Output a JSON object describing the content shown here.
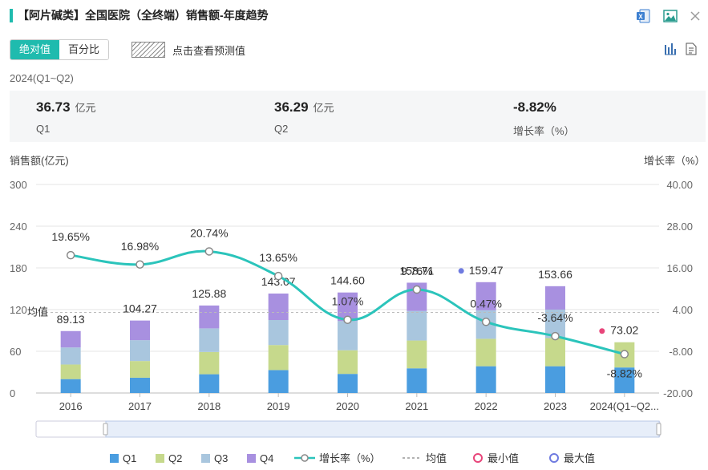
{
  "header": {
    "title": "【阿片碱类】全国医院（全终端）销售额-年度趋势",
    "export_excel_icon": "excel-export-icon",
    "export_image_icon": "image-export-icon",
    "close_icon": "close-icon"
  },
  "toolbar": {
    "absolute_label": "绝对值",
    "percent_label": "百分比",
    "forecast_label": "点击查看预测值",
    "chart_view_icon": "bar-chart-icon",
    "table_view_icon": "document-icon"
  },
  "summary": {
    "period": "2024(Q1~Q2)",
    "items": [
      {
        "value": "36.73",
        "unit": "亿元",
        "label": "Q1"
      },
      {
        "value": "36.29",
        "unit": "亿元",
        "label": "Q2"
      },
      {
        "value": "-8.82%",
        "unit": "",
        "label": "增长率（%）"
      }
    ]
  },
  "chart_data": {
    "type": "bar",
    "stacked": true,
    "left_axis_title": "销售额(亿元)",
    "right_axis_title": "增长率（%）",
    "categories": [
      "2016",
      "2017",
      "2018",
      "2019",
      "2020",
      "2021",
      "2022",
      "2023",
      "2024(Q1~Q2..."
    ],
    "series": [
      {
        "name": "Q1",
        "color": "#4a9de0",
        "values": [
          20,
          22,
          27,
          33,
          27.5,
          35.5,
          38.5,
          38.5,
          36.73
        ]
      },
      {
        "name": "Q2",
        "color": "#c6d98c",
        "values": [
          21,
          24,
          32,
          36,
          34,
          40,
          39.5,
          40.5,
          36.29
        ]
      },
      {
        "name": "Q3",
        "color": "#a9c6de",
        "values": [
          24.5,
          30,
          34,
          36,
          42,
          42.5,
          41,
          41,
          null
        ]
      },
      {
        "name": "Q4",
        "color": "#a890e0",
        "values": [
          23.63,
          28.27,
          32.88,
          38.07,
          41.1,
          40.71,
          40.47,
          33.66,
          null
        ]
      }
    ],
    "totals": [
      89.13,
      104.27,
      125.88,
      143.07,
      144.6,
      158.71,
      159.47,
      153.66,
      73.02
    ],
    "total_labels": [
      "89.13",
      "104.27",
      "125.88",
      "143.07",
      "144.60",
      "158.71",
      "159.47",
      "153.66",
      "73.02"
    ],
    "growth": {
      "name": "增长率（%）",
      "color": "#2bc4bb",
      "values": [
        19.65,
        16.98,
        20.74,
        13.65,
        1.07,
        9.76,
        0.47,
        -3.64,
        -8.82
      ],
      "labels": [
        "19.65%",
        "16.98%",
        "20.74%",
        "13.65%",
        "1.07%",
        "9.76%",
        "0.47%",
        "-3.64%",
        "-8.82%"
      ]
    },
    "left_axis": {
      "min": 0,
      "max": 300,
      "ticks": [
        "0",
        "60",
        "120",
        "180",
        "240",
        "300"
      ]
    },
    "right_axis": {
      "min": -20,
      "max": 40,
      "ticks": [
        "-20.00",
        "-8.00",
        "4.00",
        "16.00",
        "28.00",
        "40.00"
      ]
    },
    "average_label": "均值",
    "average_value": 116,
    "min_marker": {
      "category": "2024(Q1~Q2...",
      "value": 73.02,
      "color": "#e8457a"
    },
    "max_marker": {
      "category": "2022",
      "value": 159.47,
      "color": "#6f7be0"
    },
    "legend": [
      "Q1",
      "Q2",
      "Q3",
      "Q4",
      "增长率（%）",
      "均值",
      "最小值",
      "最大值"
    ]
  }
}
